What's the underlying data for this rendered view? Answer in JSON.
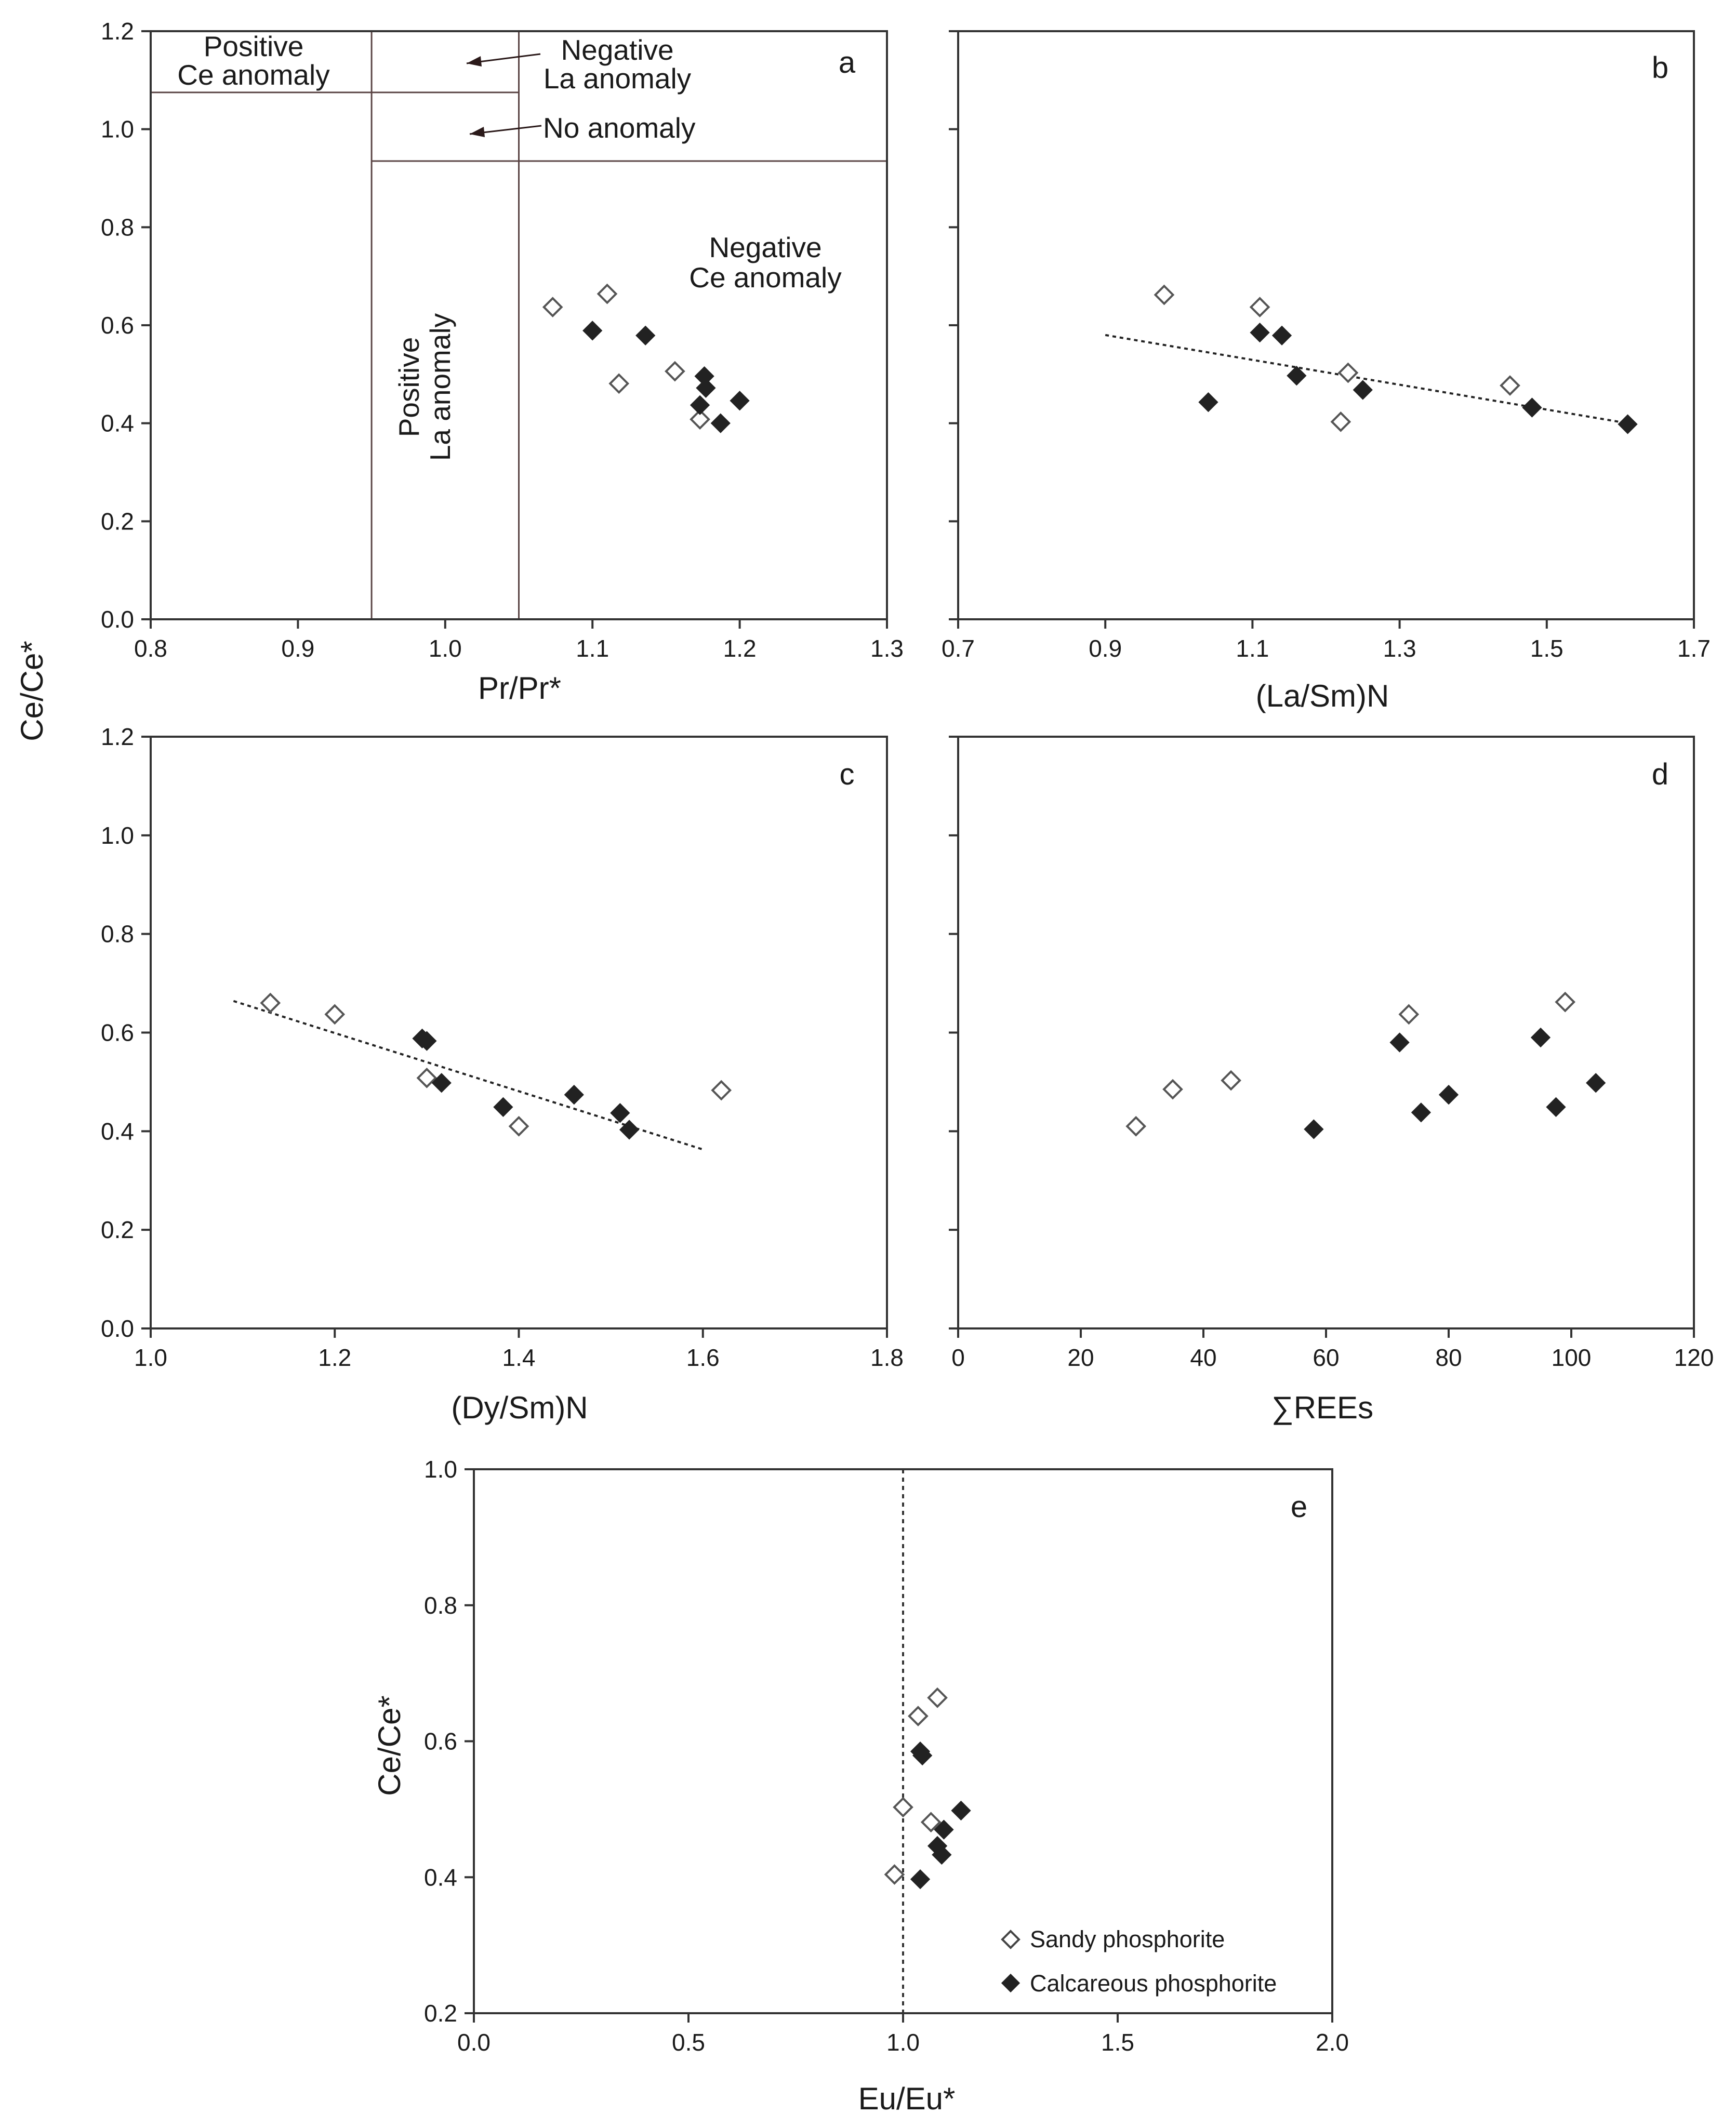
{
  "shared_ylabel": "Ce/Ce*",
  "legend": {
    "sandy": "Sandy phosphorite",
    "calcareous": "Calcareous phosphorite"
  },
  "chart_data": [
    {
      "id": "a",
      "type": "scatter",
      "letter": "a",
      "xlabel": "Pr/Pr*",
      "ylabel": "Ce/Ce*",
      "xlim": [
        0.8,
        1.3
      ],
      "ylim": [
        0,
        1.2
      ],
      "xticks": [
        0.8,
        0.9,
        1.0,
        1.1,
        1.2,
        1.3
      ],
      "yticks": [
        0,
        0.2,
        0.4,
        0.6,
        0.8,
        1.0,
        1.2
      ],
      "xtick_labels": [
        "0.8",
        "0.9",
        "1.0",
        "1.1",
        "1.2",
        "1.3"
      ],
      "ytick_labels": [
        "0.0",
        "0.2",
        "0.4",
        "0.6",
        "0.8",
        "1.0",
        "1.2"
      ],
      "region_lines": {
        "vertical_x": [
          0.95,
          1.05
        ],
        "horizontal_full": 1.075,
        "horizontal_left": 1.075,
        "horizontal_right": 0.935
      },
      "region_labels": {
        "positive_ce": [
          "Positive",
          "Ce anomaly"
        ],
        "negative_la": [
          "Negative",
          "La anomaly"
        ],
        "no_anomaly": "No anomaly",
        "positive_la": [
          "Positive",
          "La anomaly"
        ],
        "negative_ce": [
          "Negative",
          "Ce anomaly"
        ]
      },
      "series": [
        {
          "name": "Sandy phosphorite",
          "marker": "open-diamond",
          "x": [
            1.073,
            1.11,
            1.118,
            1.156,
            1.173
          ],
          "y": [
            0.637,
            0.664,
            0.481,
            0.506,
            0.408
          ]
        },
        {
          "name": "Calcareous phosphorite",
          "marker": "filled-diamond",
          "x": [
            1.1,
            1.136,
            1.176,
            1.177,
            1.173,
            1.187,
            1.2
          ],
          "y": [
            0.589,
            0.579,
            0.496,
            0.472,
            0.437,
            0.4,
            0.446
          ]
        }
      ]
    },
    {
      "id": "b",
      "type": "scatter",
      "letter": "b",
      "xlabel": "(La/Sm)N",
      "ylabel": "Ce/Ce*",
      "xlim": [
        0.7,
        1.7
      ],
      "ylim": [
        0,
        1.2
      ],
      "xticks": [
        0.7,
        0.9,
        1.1,
        1.3,
        1.5,
        1.7
      ],
      "yticks": [
        0,
        0.2,
        0.4,
        0.6,
        0.8,
        1.0,
        1.2
      ],
      "xtick_labels": [
        "0.7",
        "0.9",
        "1.1",
        "1.3",
        "1.5",
        "1.7"
      ],
      "ytick_labels": [],
      "trend": {
        "x": [
          0.9,
          1.61
        ],
        "y": [
          0.58,
          0.4
        ]
      },
      "series": [
        {
          "name": "Sandy phosphorite",
          "marker": "open-diamond",
          "x": [
            0.98,
            1.11,
            1.23,
            1.22,
            1.45
          ],
          "y": [
            0.662,
            0.637,
            0.503,
            0.403,
            0.477
          ]
        },
        {
          "name": "Calcareous phosphorite",
          "marker": "filled-diamond",
          "x": [
            1.04,
            1.11,
            1.14,
            1.16,
            1.25,
            1.48,
            1.61
          ],
          "y": [
            0.443,
            0.585,
            0.579,
            0.497,
            0.468,
            0.432,
            0.398
          ]
        }
      ]
    },
    {
      "id": "c",
      "type": "scatter",
      "letter": "c",
      "xlabel": "(Dy/Sm)N",
      "ylabel": "Ce/Ce*",
      "xlim": [
        1.0,
        1.8
      ],
      "ylim": [
        0,
        1.2
      ],
      "xticks": [
        1.0,
        1.2,
        1.4,
        1.6,
        1.8
      ],
      "yticks": [
        0,
        0.2,
        0.4,
        0.6,
        0.8,
        1.0,
        1.2
      ],
      "xtick_labels": [
        "1.0",
        "1.2",
        "1.4",
        "1.6",
        "1.8"
      ],
      "ytick_labels": [
        "0.0",
        "0.2",
        "0.4",
        "0.6",
        "0.8",
        "1.0",
        "1.2"
      ],
      "trend": {
        "x": [
          1.09,
          1.6
        ],
        "y": [
          0.664,
          0.363
        ]
      },
      "series": [
        {
          "name": "Sandy phosphorite",
          "marker": "open-diamond",
          "x": [
            1.13,
            1.2,
            1.3,
            1.4,
            1.62
          ],
          "y": [
            0.66,
            0.637,
            0.508,
            0.41,
            0.483
          ]
        },
        {
          "name": "Calcareous phosphorite",
          "marker": "filled-diamond",
          "x": [
            1.295,
            1.3,
            1.316,
            1.383,
            1.46,
            1.51,
            1.52
          ],
          "y": [
            0.588,
            0.583,
            0.498,
            0.449,
            0.474,
            0.437,
            0.403
          ]
        }
      ]
    },
    {
      "id": "d",
      "type": "scatter",
      "letter": "d",
      "xlabel": "∑REEs",
      "ylabel": "Ce/Ce*",
      "xlim": [
        0,
        120
      ],
      "ylim": [
        0,
        1.2
      ],
      "xticks": [
        0,
        20,
        40,
        60,
        80,
        100,
        120
      ],
      "yticks": [
        0,
        0.2,
        0.4,
        0.6,
        0.8,
        1.0,
        1.2
      ],
      "xtick_labels": [
        "0",
        "20",
        "40",
        "60",
        "80",
        "100",
        "120"
      ],
      "ytick_labels": [],
      "series": [
        {
          "name": "Sandy phosphorite",
          "marker": "open-diamond",
          "x": [
            29,
            35,
            44.5,
            73.5,
            99
          ],
          "y": [
            0.41,
            0.485,
            0.503,
            0.637,
            0.662
          ]
        },
        {
          "name": "Calcareous phosphorite",
          "marker": "filled-diamond",
          "x": [
            58,
            72,
            75.5,
            80,
            95,
            97.5,
            104
          ],
          "y": [
            0.404,
            0.58,
            0.438,
            0.474,
            0.59,
            0.449,
            0.498
          ]
        }
      ]
    },
    {
      "id": "e",
      "type": "scatter",
      "letter": "e",
      "xlabel": "Eu/Eu*",
      "ylabel": "Ce/Ce*",
      "xlim": [
        0,
        2.0
      ],
      "ylim": [
        0.2,
        1.0
      ],
      "xticks": [
        0,
        0.5,
        1.0,
        1.5,
        2.0
      ],
      "yticks": [
        0.2,
        0.4,
        0.6,
        0.8,
        1.0
      ],
      "xtick_labels": [
        "0.0",
        "0.5",
        "1.0",
        "1.5",
        "2.0"
      ],
      "ytick_labels": [
        "0.2",
        "0.4",
        "0.6",
        "0.8",
        "1.0"
      ],
      "refline_x": 1.0,
      "series": [
        {
          "name": "Sandy phosphorite",
          "marker": "open-diamond",
          "x": [
            0.98,
            1.0,
            1.035,
            1.065,
            1.08
          ],
          "y": [
            0.404,
            0.503,
            0.637,
            0.481,
            0.664
          ]
        },
        {
          "name": "Calcareous phosphorite",
          "marker": "filled-diamond",
          "x": [
            1.04,
            1.045,
            1.08,
            1.09,
            1.095,
            1.135,
            1.04
          ],
          "y": [
            0.585,
            0.579,
            0.446,
            0.433,
            0.47,
            0.498,
            0.397
          ]
        }
      ]
    }
  ]
}
